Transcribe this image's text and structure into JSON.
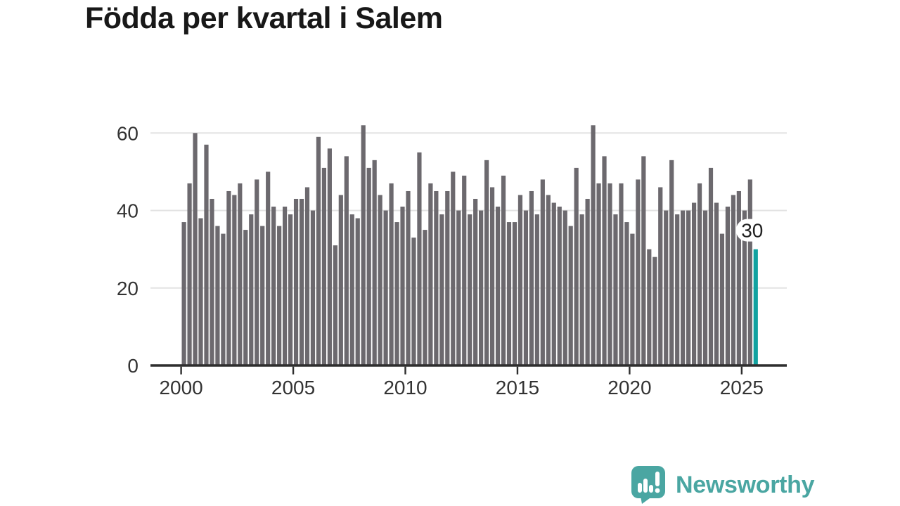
{
  "chart_data": {
    "type": "bar",
    "title": "Födda per kvartal i Salem",
    "x_unit": "quarter",
    "x_range": {
      "start": "2000 Q1",
      "end": "2025 Q3"
    },
    "values": [
      37,
      47,
      60,
      38,
      57,
      43,
      36,
      34,
      45,
      44,
      47,
      35,
      39,
      48,
      36,
      50,
      41,
      36,
      41,
      39,
      43,
      43,
      46,
      40,
      59,
      51,
      56,
      31,
      44,
      54,
      39,
      38,
      62,
      51,
      53,
      44,
      40,
      47,
      37,
      41,
      45,
      33,
      55,
      35,
      47,
      45,
      39,
      45,
      50,
      40,
      49,
      39,
      43,
      40,
      53,
      46,
      41,
      49,
      37,
      37,
      44,
      40,
      45,
      39,
      48,
      44,
      42,
      41,
      40,
      36,
      51,
      39,
      43,
      62,
      47,
      54,
      47,
      39,
      47,
      37,
      34,
      48,
      54,
      30,
      28,
      46,
      40,
      53,
      39,
      40,
      40,
      42,
      47,
      40,
      51,
      42,
      34,
      41,
      44,
      45,
      40,
      48,
      30
    ],
    "x_tick_labels": [
      "2000",
      "2005",
      "2010",
      "2015",
      "2020",
      "2025"
    ],
    "x_tick_years": [
      2000,
      2005,
      2010,
      2015,
      2020,
      2025
    ],
    "y_tick_labels": [
      "0",
      "20",
      "40",
      "60"
    ],
    "y_tick_values": [
      0,
      20,
      40,
      60
    ],
    "ylim": [
      0,
      64
    ],
    "grid": "horizontal",
    "legend": "none",
    "highlight": {
      "index": 102,
      "quarter": "2025 Q3",
      "label": "30"
    }
  },
  "colors": {
    "bar": "#6c696e",
    "highlight": "#12a2a0",
    "axis": "#2e2e2e",
    "grid": "#e3e3e3",
    "tick_text": "#333333",
    "title_text": "#181818",
    "brand": "#4aa6a2",
    "annotation_bg": "#ffffff",
    "annotation_text": "#222222",
    "background": "#ffffff"
  },
  "brand": {
    "name": "Newsworthy"
  }
}
